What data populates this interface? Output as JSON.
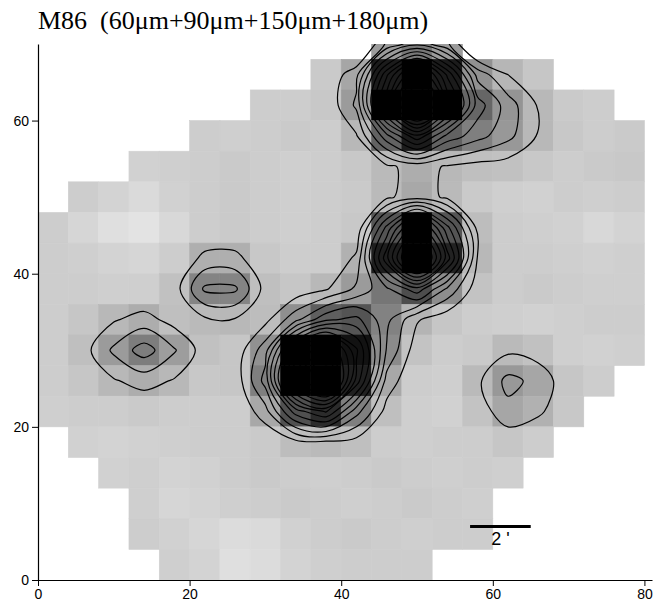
{
  "chart_data": {
    "type": "contour",
    "title": "M86  (60μm+90μm+150μm+180μm)",
    "xlim": [
      0,
      81
    ],
    "ylim": [
      0,
      70
    ],
    "xticks": [
      0,
      20,
      40,
      60,
      80
    ],
    "yticks": [
      0,
      20,
      40,
      60
    ],
    "x": [
      2,
      6,
      10,
      14,
      18,
      22,
      26,
      30,
      34,
      38,
      42,
      46,
      50,
      54,
      58,
      62,
      66,
      70,
      74,
      78
    ],
    "y": [
      70,
      66,
      62,
      58,
      54,
      50,
      46,
      42,
      38,
      34,
      30,
      26,
      22,
      18,
      14,
      10,
      6,
      2
    ],
    "z": [
      [
        null,
        null,
        null,
        null,
        null,
        null,
        null,
        null,
        null,
        null,
        null,
        3.2,
        4.7,
        3.2,
        null,
        null,
        null,
        null,
        null,
        null
      ],
      [
        null,
        null,
        null,
        null,
        null,
        null,
        null,
        null,
        null,
        1.1,
        2.7,
        8.8,
        13.8,
        8.8,
        3.6,
        2.0,
        1.3,
        null,
        null,
        null
      ],
      [
        null,
        null,
        null,
        null,
        null,
        null,
        null,
        1.0,
        1.0,
        1.2,
        3.2,
        11,
        17.5,
        11,
        5.5,
        3.5,
        1.9,
        1.1,
        1.0,
        null
      ],
      [
        null,
        null,
        null,
        null,
        null,
        1.0,
        0.9,
        1.0,
        1.1,
        1.0,
        1.9,
        5.7,
        8.8,
        5.7,
        4.4,
        3.3,
        1.9,
        1.2,
        1.0,
        1.1
      ],
      [
        null,
        null,
        null,
        0.8,
        0.9,
        1.0,
        1.1,
        1.0,
        0.9,
        1.0,
        1.2,
        1.8,
        2.4,
        1.9,
        1.6,
        1.5,
        1.2,
        1.0,
        1.1,
        1.2
      ],
      [
        null,
        1.0,
        0.7,
        0.4,
        0.8,
        1.0,
        1.1,
        1.0,
        0.9,
        1.0,
        1.1,
        1.8,
        2.6,
        1.8,
        1.1,
        0.9,
        0.8,
        1.0,
        0.9,
        1.0
      ],
      [
        1.0,
        0.6,
        0.2,
        0.0,
        0.5,
        1.0,
        1.1,
        1.0,
        0.9,
        1.0,
        1.2,
        6.3,
        11.2,
        6.3,
        1.7,
        1.0,
        0.9,
        0.8,
        0.5,
        0.7
      ],
      [
        1.0,
        0.9,
        0.7,
        0.6,
        1.0,
        2.3,
        2.3,
        1.2,
        1.0,
        1.0,
        2.2,
        8.7,
        15.4,
        8.5,
        1.9,
        1.0,
        1.0,
        0.9,
        0.8,
        0.9
      ],
      [
        1.0,
        1.0,
        0.9,
        0.9,
        1.5,
        4.2,
        4.2,
        1.6,
        1.3,
        1.9,
        3.2,
        4.8,
        6.6,
        3.8,
        1.4,
        1.0,
        1.1,
        1.0,
        0.9,
        0.9
      ],
      [
        1.0,
        1.3,
        1.9,
        2.4,
        1.6,
        1.8,
        1.9,
        1.7,
        3.7,
        5.8,
        6.3,
        4.3,
        2.1,
        1.3,
        1.0,
        0.9,
        0.8,
        0.9,
        1.0,
        1.0
      ],
      [
        1.0,
        1.6,
        3.2,
        4.5,
        3.1,
        1.5,
        1.3,
        3.6,
        10.0,
        13.7,
        9.2,
        3.9,
        1.4,
        1.0,
        1.1,
        1.8,
        1.5,
        0.9,
        0.8,
        0.9
      ],
      [
        1.0,
        1.3,
        1.9,
        2.4,
        1.9,
        1.2,
        1.3,
        4.4,
        12.7,
        16.2,
        8.6,
        2.6,
        1.0,
        0.9,
        1.8,
        3.3,
        2.7,
        1.3,
        1.0,
        null
      ],
      [
        0.9,
        1.0,
        1.0,
        1.1,
        1.0,
        1.0,
        1.0,
        2.6,
        6.5,
        8.1,
        4.4,
        1.6,
        0.9,
        0.8,
        1.4,
        2.7,
        2.2,
        1.2,
        null,
        null
      ],
      [
        null,
        0.8,
        0.7,
        0.8,
        0.9,
        1.0,
        1.0,
        1.1,
        1.7,
        1.8,
        1.6,
        1.0,
        0.9,
        1.0,
        1.0,
        1.3,
        1.0,
        null,
        null,
        null
      ],
      [
        null,
        null,
        0.8,
        0.9,
        0.7,
        0.8,
        1.0,
        1.1,
        1.0,
        0.9,
        1.0,
        1.1,
        1.0,
        0.9,
        1.0,
        0.9,
        null,
        null,
        null,
        null
      ],
      [
        null,
        null,
        null,
        0.9,
        0.6,
        0.7,
        0.9,
        1.0,
        1.1,
        1.0,
        0.9,
        1.0,
        1.1,
        1.0,
        0.9,
        null,
        null,
        null,
        null,
        null
      ],
      [
        null,
        null,
        null,
        1.0,
        0.8,
        0.6,
        0.3,
        0.4,
        0.8,
        1.0,
        1.1,
        1.0,
        0.9,
        1.0,
        1.0,
        null,
        null,
        null,
        null,
        null
      ],
      [
        null,
        null,
        null,
        null,
        0.9,
        0.7,
        0.2,
        0.3,
        0.7,
        0.9,
        1.0,
        1.0,
        1.0,
        null,
        null,
        null,
        null,
        null,
        null,
        null
      ]
    ],
    "zlim": [
      -1,
      10
    ],
    "contour_levels": [
      2,
      3,
      4,
      5,
      6,
      7,
      8,
      9,
      10,
      11,
      12,
      13,
      14,
      15
    ],
    "scale_bar": {
      "from": 57,
      "to": 65,
      "y": 7,
      "label": "2 '"
    }
  }
}
